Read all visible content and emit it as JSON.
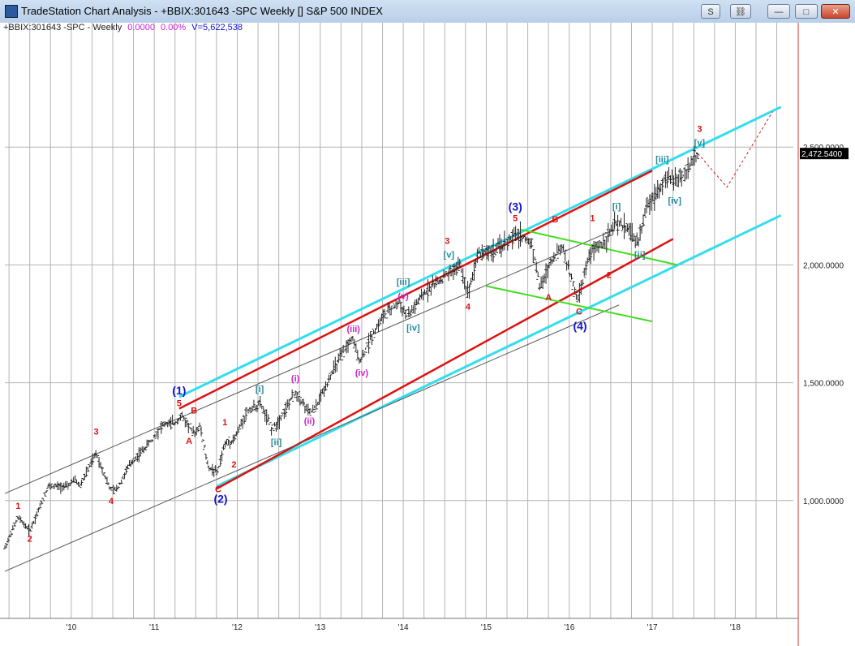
{
  "window": {
    "title": "TradeStation Chart Analysis - +BBIX:301643 -SPC Weekly [] S&P 500 INDEX",
    "buttons": {
      "s": "S",
      "link": "⛓",
      "minimize": "—",
      "maximize": "□",
      "close": "✕"
    }
  },
  "infobar": {
    "symbol": "+BBIX:301643 -SPC - Weekly",
    "net_change": "0.0000",
    "pct_change": "0.00%",
    "volume": "V=5,622,538"
  },
  "colors": {
    "up_channel": "#33ddee",
    "red_channel": "#dd1111",
    "green_lines": "#44dd22",
    "bars": "#222222",
    "red_label": "#dd1111",
    "blue_label": "#1111cc",
    "teal_label": "#228899",
    "magenta_label": "#cc22cc"
  },
  "chart_data": {
    "type": "ohlc",
    "title": "",
    "xlabel": "",
    "ylabel": "",
    "x_ticks": [
      "'10",
      "'11",
      "'12",
      "'13",
      "'14",
      "'15",
      "'16",
      "'17",
      "'18"
    ],
    "x_tick_years": [
      2010,
      2011,
      2012,
      2013,
      2014,
      2015,
      2016,
      2017,
      2018
    ],
    "y_ticks": [
      "1,000.0000",
      "1,500.0000",
      "2,000.0000",
      "2,500.0000"
    ],
    "y_tick_values": [
      1000,
      1500,
      2000,
      2500
    ],
    "ylim": [
      500,
      3000
    ],
    "xlim": [
      2009.2,
      2018.7
    ],
    "grid": true,
    "last_price": "2,472.5400",
    "last_value": 2472.54,
    "price_path": [
      [
        2009.2,
        800
      ],
      [
        2009.36,
        930
      ],
      [
        2009.5,
        870
      ],
      [
        2009.72,
        1060
      ],
      [
        2009.95,
        1060
      ],
      [
        2010.05,
        1090
      ],
      [
        2010.1,
        1060
      ],
      [
        2010.3,
        1200
      ],
      [
        2010.48,
        1040
      ],
      [
        2010.55,
        1050
      ],
      [
        2010.7,
        1150
      ],
      [
        2010.95,
        1250
      ],
      [
        2011.1,
        1320
      ],
      [
        2011.25,
        1330
      ],
      [
        2011.33,
        1360
      ],
      [
        2011.48,
        1280
      ],
      [
        2011.55,
        1320
      ],
      [
        2011.65,
        1140
      ],
      [
        2011.76,
        1120
      ],
      [
        2011.85,
        1240
      ],
      [
        2011.96,
        1260
      ],
      [
        2012.12,
        1380
      ],
      [
        2012.28,
        1410
      ],
      [
        2012.42,
        1300
      ],
      [
        2012.52,
        1350
      ],
      [
        2012.7,
        1460
      ],
      [
        2012.87,
        1370
      ],
      [
        2012.95,
        1400
      ],
      [
        2013.15,
        1550
      ],
      [
        2013.38,
        1690
      ],
      [
        2013.48,
        1590
      ],
      [
        2013.62,
        1700
      ],
      [
        2013.75,
        1780
      ],
      [
        2013.95,
        1840
      ],
      [
        2014.05,
        1780
      ],
      [
        2014.3,
        1900
      ],
      [
        2014.55,
        1960
      ],
      [
        2014.68,
        2000
      ],
      [
        2014.78,
        1880
      ],
      [
        2014.9,
        2050
      ],
      [
        2015.1,
        2060
      ],
      [
        2015.38,
        2130
      ],
      [
        2015.55,
        2090
      ],
      [
        2015.65,
        1900
      ],
      [
        2015.78,
        2020
      ],
      [
        2015.92,
        2080
      ],
      [
        2016.0,
        1970
      ],
      [
        2016.1,
        1850
      ],
      [
        2016.25,
        2050
      ],
      [
        2016.42,
        2100
      ],
      [
        2016.55,
        2170
      ],
      [
        2016.7,
        2160
      ],
      [
        2016.82,
        2090
      ],
      [
        2016.95,
        2260
      ],
      [
        2017.15,
        2360
      ],
      [
        2017.35,
        2370
      ],
      [
        2017.55,
        2472.54
      ]
    ],
    "projection": [
      [
        2017.55,
        2472.54
      ],
      [
        2017.9,
        2330
      ],
      [
        2018.45,
        2650
      ]
    ],
    "lines": [
      {
        "id": "cyan-upper",
        "color": "cyan",
        "x": [
          2011.3,
          2018.55
        ],
        "y": [
          1440,
          2670
        ]
      },
      {
        "id": "cyan-lower",
        "color": "cyan",
        "x": [
          2011.75,
          2018.55
        ],
        "y": [
          1060,
          2210
        ]
      },
      {
        "id": "red-upper",
        "color": "red",
        "x": [
          2011.3,
          2017.0
        ],
        "y": [
          1390,
          2400
        ]
      },
      {
        "id": "red-lower",
        "color": "red",
        "x": [
          2011.75,
          2017.25
        ],
        "y": [
          1050,
          2110
        ]
      },
      {
        "id": "gray-upper",
        "color": "gray",
        "x": [
          2009.2,
          2016.55
        ],
        "y": [
          1030,
          2150
        ]
      },
      {
        "id": "gray-lower",
        "color": "gray",
        "x": [
          2009.2,
          2016.6
        ],
        "y": [
          700,
          1830
        ]
      },
      {
        "id": "green-upper",
        "color": "green",
        "x": [
          2015.42,
          2017.3
        ],
        "y": [
          2150,
          2000
        ]
      },
      {
        "id": "green-lower",
        "color": "green",
        "x": [
          2015.0,
          2017.0
        ],
        "y": [
          1910,
          1760
        ]
      }
    ],
    "annotations": [
      {
        "text": "1",
        "color": "red",
        "x": 2009.36,
        "y": 965
      },
      {
        "text": "2",
        "color": "red",
        "x": 2009.5,
        "y": 825
      },
      {
        "text": "3",
        "color": "red",
        "x": 2010.3,
        "y": 1280
      },
      {
        "text": "4",
        "color": "red",
        "x": 2010.48,
        "y": 985
      },
      {
        "text": "5",
        "color": "red",
        "x": 2011.3,
        "y": 1400
      },
      {
        "text": "B",
        "color": "red",
        "x": 2011.48,
        "y": 1370
      },
      {
        "text": "A",
        "color": "red",
        "x": 2011.42,
        "y": 1240
      },
      {
        "text": "1",
        "color": "red",
        "x": 2011.85,
        "y": 1320
      },
      {
        "text": "2",
        "color": "red",
        "x": 2011.96,
        "y": 1140
      },
      {
        "text": "C",
        "color": "red",
        "x": 2011.77,
        "y": 1035
      },
      {
        "text": "(2)",
        "color": "blue",
        "x": 2011.8,
        "y": 990
      },
      {
        "text": "(1)",
        "color": "blue",
        "x": 2011.3,
        "y": 1450
      },
      {
        "text": "[i]",
        "color": "teal",
        "x": 2012.27,
        "y": 1460
      },
      {
        "text": "[ii]",
        "color": "teal",
        "x": 2012.47,
        "y": 1235
      },
      {
        "text": "(i)",
        "color": "magenta",
        "x": 2012.7,
        "y": 1505
      },
      {
        "text": "(ii)",
        "color": "magenta",
        "x": 2012.87,
        "y": 1325
      },
      {
        "text": "(iii)",
        "color": "magenta",
        "x": 2013.4,
        "y": 1715
      },
      {
        "text": "(iv)",
        "color": "magenta",
        "x": 2013.5,
        "y": 1530
      },
      {
        "text": "(v)",
        "color": "magenta",
        "x": 2014.0,
        "y": 1855
      },
      {
        "text": "[iii]",
        "color": "teal",
        "x": 2014.0,
        "y": 1915
      },
      {
        "text": "[iv]",
        "color": "teal",
        "x": 2014.12,
        "y": 1720
      },
      {
        "text": "[v]",
        "color": "teal",
        "x": 2014.55,
        "y": 2030
      },
      {
        "text": "3",
        "color": "red",
        "x": 2014.53,
        "y": 2090
      },
      {
        "text": "4",
        "color": "red",
        "x": 2014.78,
        "y": 1810
      },
      {
        "text": "5",
        "color": "red",
        "x": 2015.35,
        "y": 2185
      },
      {
        "text": "(3)",
        "color": "blue",
        "x": 2015.35,
        "y": 2230
      },
      {
        "text": "B",
        "color": "red",
        "x": 2015.83,
        "y": 2180
      },
      {
        "text": "A",
        "color": "red",
        "x": 2015.75,
        "y": 1850
      },
      {
        "text": "C",
        "color": "red",
        "x": 2016.12,
        "y": 1790
      },
      {
        "text": "(4)",
        "color": "blue",
        "x": 2016.13,
        "y": 1725
      },
      {
        "text": "1",
        "color": "red",
        "x": 2016.28,
        "y": 2185
      },
      {
        "text": "2",
        "color": "red",
        "x": 2016.48,
        "y": 1945
      },
      {
        "text": "[i]",
        "color": "teal",
        "x": 2016.57,
        "y": 2235
      },
      {
        "text": "[ii]",
        "color": "teal",
        "x": 2016.85,
        "y": 2030
      },
      {
        "text": "[iii]",
        "color": "teal",
        "x": 2017.12,
        "y": 2435
      },
      {
        "text": "[iv]",
        "color": "teal",
        "x": 2017.27,
        "y": 2260
      },
      {
        "text": "[v]",
        "color": "teal",
        "x": 2017.57,
        "y": 2505
      },
      {
        "text": "3",
        "color": "red",
        "x": 2017.57,
        "y": 2565
      }
    ]
  }
}
